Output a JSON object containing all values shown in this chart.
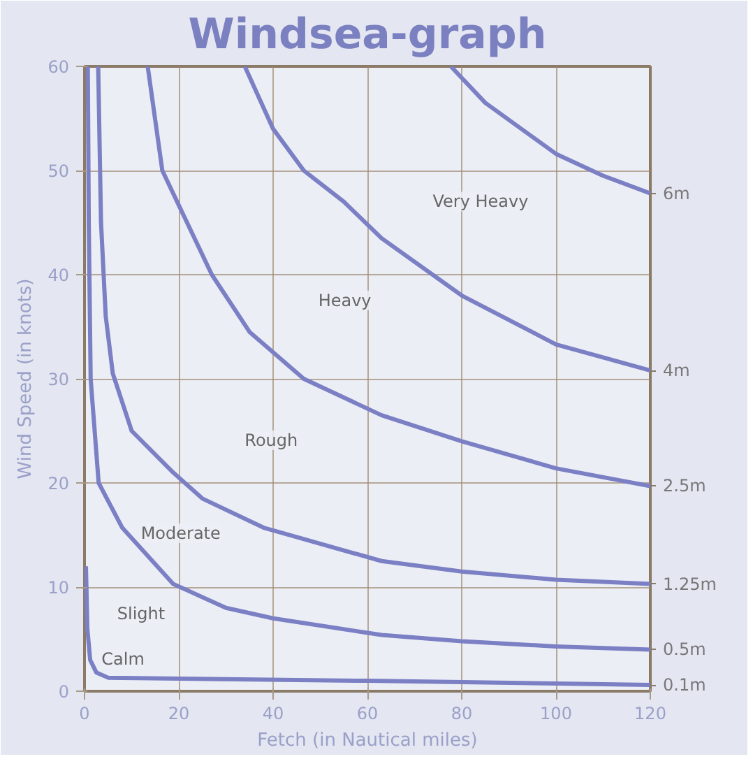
{
  "chart_data": {
    "type": "line",
    "title": "Windsea-graph",
    "xlabel": "Fetch (in Nautical miles)",
    "ylabel": "Wind Speed (in knots)",
    "xlim": [
      0,
      120
    ],
    "ylim": [
      0,
      60
    ],
    "xticks": [
      0,
      20,
      40,
      60,
      80,
      100,
      120
    ],
    "yticks": [
      0,
      10,
      20,
      30,
      40,
      50,
      60
    ],
    "grid": true,
    "marker": "none",
    "line_style": "solid",
    "series": [
      {
        "name": "0.1m",
        "color": "#7b7fc4",
        "x": [
          0.3,
          0.6,
          1.2,
          2.5,
          5,
          20,
          60,
          120
        ],
        "values": [
          12,
          6,
          3,
          1.8,
          1.3,
          1.2,
          1.0,
          0.6
        ]
      },
      {
        "name": "0.5m",
        "color": "#7b7fc4",
        "x": [
          0.7,
          0.9,
          1.3,
          3,
          8,
          18.8,
          30,
          40,
          63,
          80,
          100,
          120
        ],
        "values": [
          60,
          45,
          30,
          20,
          15.7,
          10.3,
          8,
          7,
          5.4,
          4.8,
          4.3,
          4.0
        ]
      },
      {
        "name": "1.25m",
        "color": "#7b7fc4",
        "x": [
          2.9,
          3.5,
          4.5,
          6,
          10,
          18.8,
          25,
          38,
          63,
          80,
          100,
          120
        ],
        "values": [
          60,
          45,
          36,
          30.5,
          25,
          21,
          18.5,
          15.7,
          12.5,
          11.5,
          10.7,
          10.3
        ]
      },
      {
        "name": "2.5m",
        "color": "#7b7fc4",
        "x": [
          13.4,
          16.5,
          27,
          35,
          46.5,
          63,
          80,
          100,
          120
        ],
        "values": [
          60,
          50,
          40,
          34.5,
          30,
          26.5,
          24,
          21.4,
          19.7
        ]
      },
      {
        "name": "4m",
        "color": "#7b7fc4",
        "x": [
          34,
          40,
          46.5,
          55,
          63,
          80,
          100,
          120
        ],
        "values": [
          60,
          54,
          50,
          47,
          43.5,
          38,
          33.3,
          30.8
        ]
      },
      {
        "name": "6m",
        "color": "#7b7fc4",
        "x": [
          77.7,
          85,
          100,
          110,
          120
        ],
        "values": [
          60,
          56.5,
          51.6,
          49.5,
          47.8
        ]
      }
    ],
    "annotations": [
      "Calm",
      "Slight",
      "Moderate",
      "Rough",
      "Heavy",
      "Very Heavy"
    ]
  }
}
